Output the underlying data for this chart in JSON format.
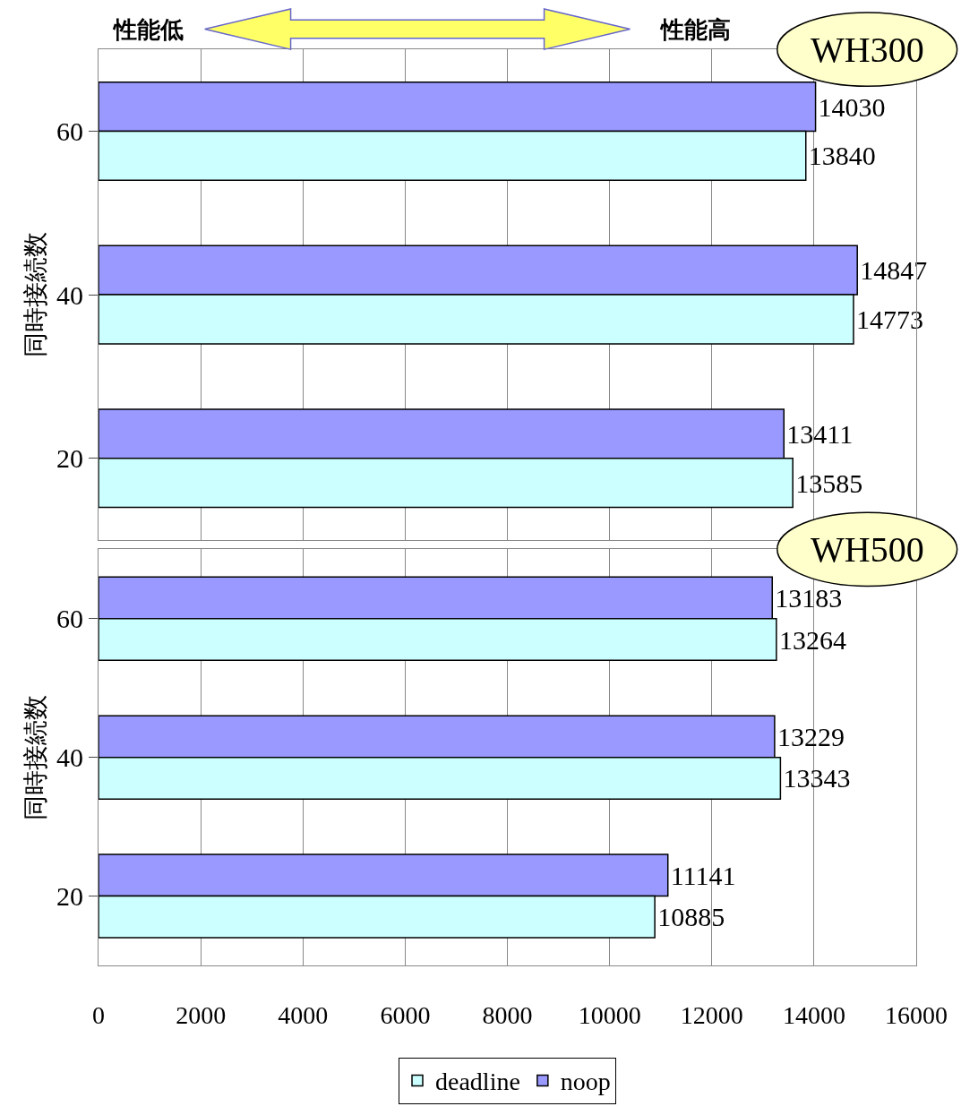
{
  "chart_data": [
    {
      "type": "bar",
      "orientation": "horizontal",
      "categories": [
        "60",
        "40",
        "20"
      ],
      "series": [
        {
          "name": "noop",
          "color": "#9999ff",
          "values": [
            14030,
            14847,
            13411
          ]
        },
        {
          "name": "deadline",
          "color": "#ccffff",
          "values": [
            13840,
            14773,
            13585
          ]
        }
      ],
      "ylabel": "同時接続数",
      "xlim": [
        0,
        16000
      ],
      "xticks": [
        0,
        2000,
        4000,
        6000,
        8000,
        10000,
        12000,
        14000,
        16000
      ],
      "grid": "x",
      "data_labels": true,
      "tick_labels": "y",
      "legend": "bottom",
      "annotations": [
        "性能低",
        "性能高",
        "WH300"
      ]
    },
    {
      "type": "bar",
      "orientation": "horizontal",
      "categories": [
        "60",
        "40",
        "20"
      ],
      "series": [
        {
          "name": "noop",
          "color": "#9999ff",
          "values": [
            13183,
            13229,
            11141
          ]
        },
        {
          "name": "deadline",
          "color": "#ccffff",
          "values": [
            13264,
            13343,
            10885
          ]
        }
      ],
      "ylabel": "同時接続数",
      "xlim": [
        0,
        16000
      ],
      "xticks": [
        0,
        2000,
        4000,
        6000,
        8000,
        10000,
        12000,
        14000,
        16000
      ],
      "grid": "x",
      "data_labels": true,
      "legend": "bottom",
      "annotations": [
        "WH500"
      ]
    }
  ]
}
